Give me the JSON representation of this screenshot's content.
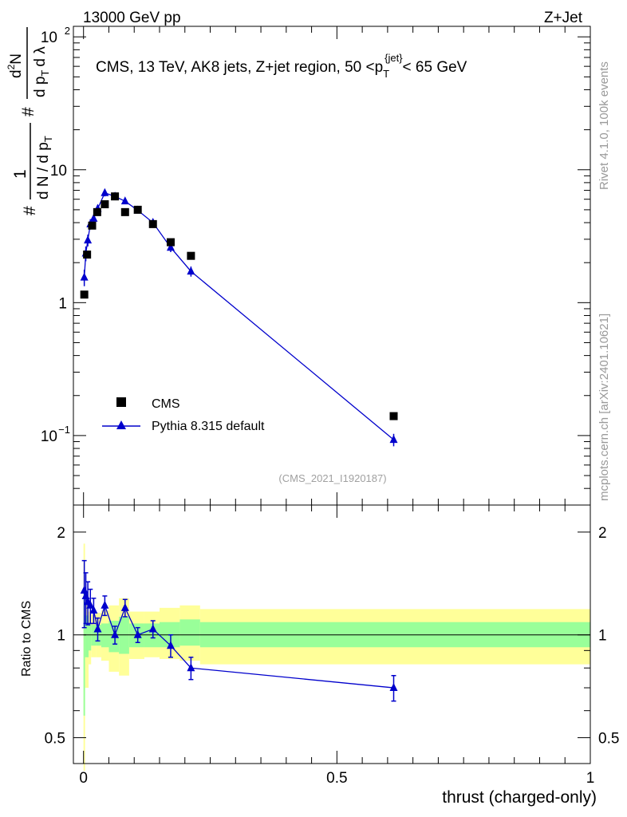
{
  "header": {
    "left": "13000 GeV pp",
    "right": "Z+Jet"
  },
  "side_text": {
    "rivet": "Rivet 4.1.0,  100k events",
    "mcplots": "mcplots.cern.ch [arXiv:2401.10621]"
  },
  "chart_data": [
    {
      "type": "scatter",
      "title": "CMS, 13 TeV, AK8 jets, Z+jet region, 50 <p_T^{jet}< 65 GeV",
      "title_parts": {
        "prefix": "CMS, 13 TeV, AK8 jets, Z+jet region, 50 <p",
        "sub": "T",
        "sup": "{jet}",
        "suffix": "< 65 GeV"
      },
      "ylabel": "1/(dN/dp_T) d^2N/(dp_T dλ)",
      "ylabel_parts": {
        "hash": "#",
        "one": "1",
        "denom": "d N / d p",
        "sub_t": "T",
        "num": "d",
        "sup2": "2",
        "N": "N",
        "dpt": "d p",
        "dl": "d λ"
      },
      "yscale": "log",
      "ylim": [
        0.03,
        120
      ],
      "xlim": [
        -0.02,
        1.0
      ],
      "ytick_labels": [
        "10",
        "1"
      ],
      "ytick_labels_exp": [
        {
          "base": "10",
          "exp": "2"
        },
        {
          "base": "10",
          "exp": "−1"
        }
      ],
      "watermark": "(CMS_2021_I1920187)",
      "legend_position": "lower-left",
      "series": [
        {
          "name": "CMS",
          "marker": "square",
          "color": "#000000",
          "x": [
            0.0015,
            0.007,
            0.017,
            0.027,
            0.042,
            0.062,
            0.082,
            0.107,
            0.137,
            0.172,
            0.212,
            0.612
          ],
          "y": [
            1.15,
            2.3,
            3.8,
            4.8,
            5.5,
            6.3,
            4.8,
            5.0,
            3.9,
            2.85,
            2.25,
            0.14
          ]
        },
        {
          "name": "Pythia 8.315 default",
          "marker": "triangle",
          "color": "#0000cc",
          "x": [
            0.0015,
            0.0045,
            0.0085,
            0.0135,
            0.02,
            0.028,
            0.042,
            0.062,
            0.082,
            0.107,
            0.137,
            0.172,
            0.212,
            0.612
          ],
          "y": [
            1.55,
            2.35,
            2.95,
            3.9,
            4.3,
            5.1,
            6.7,
            6.3,
            5.8,
            4.95,
            4.0,
            2.6,
            1.72,
            0.093
          ],
          "yerr": [
            0.22,
            0.3,
            0.3,
            0.35,
            0.3,
            0.35,
            0.4,
            0.3,
            0.3,
            0.25,
            0.25,
            0.2,
            0.15,
            0.01
          ]
        }
      ]
    },
    {
      "type": "scatter",
      "ylabel": "Ratio to CMS",
      "xlabel": "thrust (charged-only)",
      "yscale": "log",
      "ylim": [
        0.42,
        2.4
      ],
      "xlim": [
        -0.02,
        1.0
      ],
      "xtick_labels": [
        "0",
        "0.5",
        "1"
      ],
      "xtick_values": [
        0,
        0.5,
        1
      ],
      "ytick_labels": [
        "2",
        "1",
        "0.5"
      ],
      "ytick_values": [
        2,
        1,
        0.5
      ],
      "reference_line": 1,
      "bands": [
        {
          "x_edges": [
            0,
            0.003,
            0.01,
            0.015,
            0.025,
            0.035,
            0.05,
            0.07,
            0.09,
            0.12,
            0.15,
            0.19,
            0.23,
            1.0
          ],
          "inner_low": [
            0.58,
            0.86,
            0.9,
            0.93,
            0.93,
            0.92,
            0.89,
            0.88,
            0.92,
            0.92,
            0.92,
            0.93,
            0.92
          ],
          "inner_high": [
            1.38,
            1.14,
            1.08,
            1.07,
            1.07,
            1.08,
            1.1,
            1.13,
            1.08,
            1.08,
            1.09,
            1.11,
            1.09
          ],
          "outer_low": [
            0.4,
            0.7,
            0.82,
            0.86,
            0.86,
            0.84,
            0.78,
            0.76,
            0.85,
            0.86,
            0.85,
            0.84,
            0.82
          ],
          "outer_high": [
            1.85,
            1.32,
            1.17,
            1.15,
            1.16,
            1.18,
            1.22,
            1.28,
            1.17,
            1.17,
            1.2,
            1.22,
            1.19
          ]
        }
      ],
      "series": [
        {
          "name": "Pythia 8.315 default",
          "marker": "triangle",
          "color": "#0000cc",
          "x": [
            0.0015,
            0.0045,
            0.0085,
            0.0135,
            0.02,
            0.028,
            0.042,
            0.062,
            0.082,
            0.107,
            0.137,
            0.172,
            0.212,
            0.612
          ],
          "y": [
            1.35,
            1.3,
            1.25,
            1.22,
            1.18,
            1.04,
            1.22,
            1.0,
            1.2,
            1.0,
            1.04,
            0.93,
            0.8,
            0.7
          ],
          "yerr": [
            0.3,
            0.22,
            0.18,
            0.14,
            0.1,
            0.08,
            0.08,
            0.06,
            0.07,
            0.05,
            0.06,
            0.07,
            0.06,
            0.06
          ]
        }
      ]
    }
  ]
}
